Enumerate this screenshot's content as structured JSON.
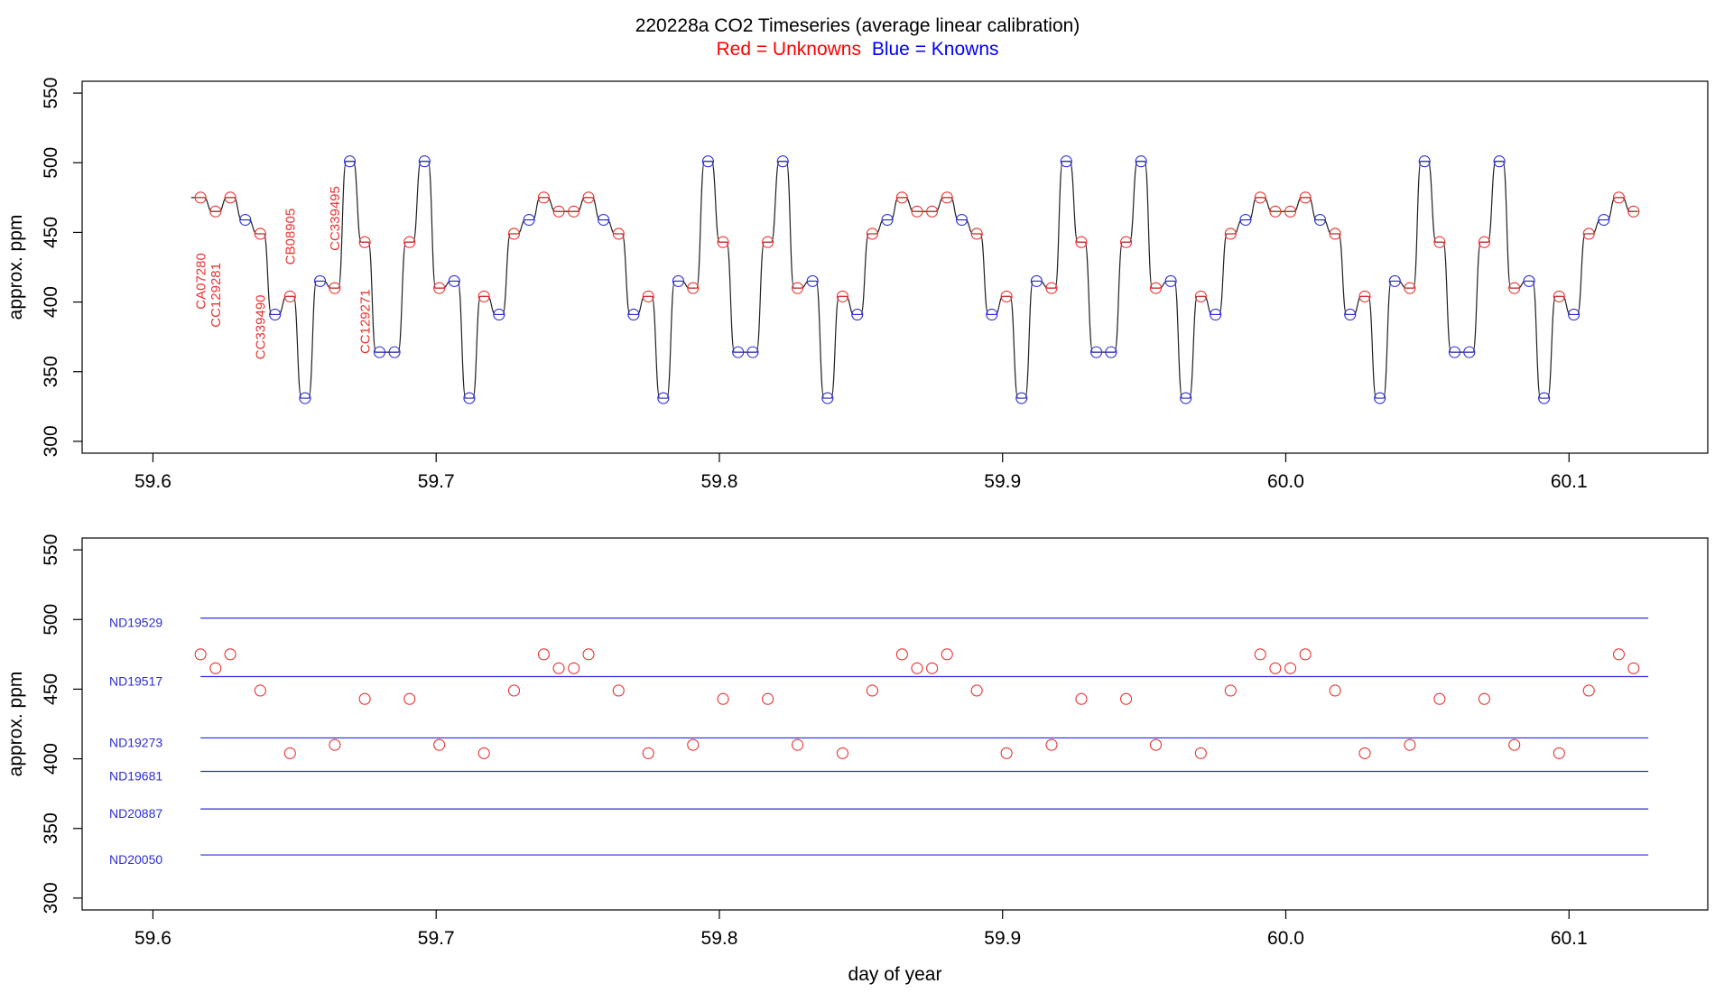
{
  "title": "220228a   CO2 Timeseries (average linear calibration)",
  "legend": {
    "red_label": "Red = Unknowns",
    "blue_label": "Blue = Knowns",
    "red_color": "#ff0000",
    "blue_color": "#0000ff"
  },
  "colors": {
    "unknown": "#e8322f",
    "known": "#2d2dd8",
    "trace": "#222222",
    "frame": "#000000"
  },
  "chart_data": [
    {
      "type": "line",
      "panel": "top",
      "xlabel": "",
      "ylabel": "approx. ppm",
      "xlim": [
        59.575,
        60.149
      ],
      "ylim": [
        291.5,
        558.5
      ],
      "xticks": [
        59.6,
        59.7,
        59.8,
        59.9,
        60.0,
        60.1
      ],
      "xtick_labels": [
        "59.6",
        "59.7",
        "59.8",
        "59.9",
        "60.0",
        "60.1"
      ],
      "yticks": [
        300,
        350,
        400,
        450,
        500,
        550
      ],
      "ytick_labels": [
        "300",
        "350",
        "400",
        "450",
        "500",
        "550"
      ],
      "trace_start": [
        59.6135,
        475
      ],
      "plateaus": [
        {
          "x": 59.6168,
          "y": 475,
          "kind": "unknown"
        },
        {
          "x": 59.6221,
          "y": 465,
          "kind": "unknown"
        },
        {
          "x": 59.6273,
          "y": 475,
          "kind": "unknown"
        },
        {
          "x": 59.6326,
          "y": 459,
          "kind": "known"
        },
        {
          "x": 59.6379,
          "y": 449,
          "kind": "unknown"
        },
        {
          "x": 59.6431,
          "y": 391,
          "kind": "known"
        },
        {
          "x": 59.6484,
          "y": 404,
          "kind": "unknown"
        },
        {
          "x": 59.6537,
          "y": 331,
          "kind": "known"
        },
        {
          "x": 59.659,
          "y": 415,
          "kind": "known"
        },
        {
          "x": 59.6642,
          "y": 410,
          "kind": "unknown"
        },
        {
          "x": 59.6695,
          "y": 501,
          "kind": "known"
        },
        {
          "x": 59.6748,
          "y": 443,
          "kind": "unknown"
        },
        {
          "x": 59.68,
          "y": 364,
          "kind": "known"
        },
        {
          "x": 59.6853,
          "y": 364,
          "kind": "known"
        },
        {
          "x": 59.6906,
          "y": 443,
          "kind": "unknown"
        },
        {
          "x": 59.6959,
          "y": 501,
          "kind": "known"
        },
        {
          "x": 59.7011,
          "y": 410,
          "kind": "unknown"
        },
        {
          "x": 59.7064,
          "y": 415,
          "kind": "known"
        },
        {
          "x": 59.7117,
          "y": 331,
          "kind": "known"
        },
        {
          "x": 59.7169,
          "y": 404,
          "kind": "unknown"
        },
        {
          "x": 59.7222,
          "y": 391,
          "kind": "known"
        },
        {
          "x": 59.7275,
          "y": 449,
          "kind": "unknown"
        },
        {
          "x": 59.7328,
          "y": 459,
          "kind": "known"
        },
        {
          "x": 59.738,
          "y": 475,
          "kind": "unknown"
        },
        {
          "x": 59.7433,
          "y": 465,
          "kind": "unknown"
        },
        {
          "x": 59.7486,
          "y": 465,
          "kind": "unknown"
        },
        {
          "x": 59.7538,
          "y": 475,
          "kind": "unknown"
        },
        {
          "x": 59.7591,
          "y": 459,
          "kind": "known"
        },
        {
          "x": 59.7644,
          "y": 449,
          "kind": "unknown"
        },
        {
          "x": 59.7697,
          "y": 391,
          "kind": "known"
        },
        {
          "x": 59.7749,
          "y": 404,
          "kind": "unknown"
        },
        {
          "x": 59.7802,
          "y": 331,
          "kind": "known"
        },
        {
          "x": 59.7855,
          "y": 415,
          "kind": "known"
        },
        {
          "x": 59.7907,
          "y": 410,
          "kind": "unknown"
        },
        {
          "x": 59.796,
          "y": 501,
          "kind": "known"
        },
        {
          "x": 59.8013,
          "y": 443,
          "kind": "unknown"
        },
        {
          "x": 59.8066,
          "y": 364,
          "kind": "known"
        },
        {
          "x": 59.8118,
          "y": 364,
          "kind": "known"
        },
        {
          "x": 59.8171,
          "y": 443,
          "kind": "unknown"
        },
        {
          "x": 59.8224,
          "y": 501,
          "kind": "known"
        },
        {
          "x": 59.8276,
          "y": 410,
          "kind": "unknown"
        },
        {
          "x": 59.8329,
          "y": 415,
          "kind": "known"
        },
        {
          "x": 59.8382,
          "y": 331,
          "kind": "known"
        },
        {
          "x": 59.8435,
          "y": 404,
          "kind": "unknown"
        },
        {
          "x": 59.8487,
          "y": 391,
          "kind": "known"
        },
        {
          "x": 59.854,
          "y": 449,
          "kind": "unknown"
        },
        {
          "x": 59.8593,
          "y": 459,
          "kind": "known"
        },
        {
          "x": 59.8645,
          "y": 475,
          "kind": "unknown"
        },
        {
          "x": 59.8698,
          "y": 465,
          "kind": "unknown"
        },
        {
          "x": 59.8751,
          "y": 465,
          "kind": "unknown"
        },
        {
          "x": 59.8804,
          "y": 475,
          "kind": "unknown"
        },
        {
          "x": 59.8856,
          "y": 459,
          "kind": "known"
        },
        {
          "x": 59.8909,
          "y": 449,
          "kind": "unknown"
        },
        {
          "x": 59.8962,
          "y": 391,
          "kind": "known"
        },
        {
          "x": 59.9014,
          "y": 404,
          "kind": "unknown"
        },
        {
          "x": 59.9067,
          "y": 331,
          "kind": "known"
        },
        {
          "x": 59.912,
          "y": 415,
          "kind": "known"
        },
        {
          "x": 59.9173,
          "y": 410,
          "kind": "unknown"
        },
        {
          "x": 59.9225,
          "y": 501,
          "kind": "known"
        },
        {
          "x": 59.9278,
          "y": 443,
          "kind": "unknown"
        },
        {
          "x": 59.9331,
          "y": 364,
          "kind": "known"
        },
        {
          "x": 59.9383,
          "y": 364,
          "kind": "known"
        },
        {
          "x": 59.9436,
          "y": 443,
          "kind": "unknown"
        },
        {
          "x": 59.9489,
          "y": 501,
          "kind": "known"
        },
        {
          "x": 59.9541,
          "y": 410,
          "kind": "unknown"
        },
        {
          "x": 59.9594,
          "y": 415,
          "kind": "known"
        },
        {
          "x": 59.9647,
          "y": 331,
          "kind": "known"
        },
        {
          "x": 59.97,
          "y": 404,
          "kind": "unknown"
        },
        {
          "x": 59.9752,
          "y": 391,
          "kind": "known"
        },
        {
          "x": 59.9805,
          "y": 449,
          "kind": "unknown"
        },
        {
          "x": 59.9858,
          "y": 459,
          "kind": "known"
        },
        {
          "x": 59.991,
          "y": 475,
          "kind": "unknown"
        },
        {
          "x": 59.9963,
          "y": 465,
          "kind": "unknown"
        },
        {
          "x": 60.0016,
          "y": 465,
          "kind": "unknown"
        },
        {
          "x": 60.0069,
          "y": 475,
          "kind": "unknown"
        },
        {
          "x": 60.0121,
          "y": 459,
          "kind": "known"
        },
        {
          "x": 60.0174,
          "y": 449,
          "kind": "unknown"
        },
        {
          "x": 60.0227,
          "y": 391,
          "kind": "known"
        },
        {
          "x": 60.0279,
          "y": 404,
          "kind": "unknown"
        },
        {
          "x": 60.0332,
          "y": 331,
          "kind": "known"
        },
        {
          "x": 60.0385,
          "y": 415,
          "kind": "known"
        },
        {
          "x": 60.0438,
          "y": 410,
          "kind": "unknown"
        },
        {
          "x": 60.049,
          "y": 501,
          "kind": "known"
        },
        {
          "x": 60.0543,
          "y": 443,
          "kind": "unknown"
        },
        {
          "x": 60.0596,
          "y": 364,
          "kind": "known"
        },
        {
          "x": 60.0648,
          "y": 364,
          "kind": "known"
        },
        {
          "x": 60.0701,
          "y": 443,
          "kind": "unknown"
        },
        {
          "x": 60.0754,
          "y": 501,
          "kind": "known"
        },
        {
          "x": 60.0807,
          "y": 410,
          "kind": "unknown"
        },
        {
          "x": 60.0859,
          "y": 415,
          "kind": "known"
        },
        {
          "x": 60.0912,
          "y": 331,
          "kind": "known"
        },
        {
          "x": 60.0965,
          "y": 404,
          "kind": "unknown"
        },
        {
          "x": 60.1017,
          "y": 391,
          "kind": "known"
        },
        {
          "x": 60.107,
          "y": 449,
          "kind": "unknown"
        },
        {
          "x": 60.1123,
          "y": 459,
          "kind": "known"
        },
        {
          "x": 60.1176,
          "y": 475,
          "kind": "unknown"
        },
        {
          "x": 60.1228,
          "y": 465,
          "kind": "unknown"
        }
      ],
      "annotations": [
        {
          "text": "CA07280",
          "x": 59.6185,
          "y": 415
        },
        {
          "text": "CC129281",
          "x": 59.6238,
          "y": 405
        },
        {
          "text": "CC339490",
          "x": 59.6395,
          "y": 382
        },
        {
          "text": "CB08905",
          "x": 59.65,
          "y": 447
        },
        {
          "text": "CC339495",
          "x": 59.6658,
          "y": 460
        },
        {
          "text": "CC129271",
          "x": 59.6765,
          "y": 386
        }
      ]
    },
    {
      "type": "scatter",
      "panel": "bottom",
      "xlabel": "day of year",
      "ylabel": "approx. ppm",
      "xlim": [
        59.575,
        60.149
      ],
      "ylim": [
        291.5,
        558.5
      ],
      "xticks": [
        59.6,
        59.7,
        59.8,
        59.9,
        60.0,
        60.1
      ],
      "xtick_labels": [
        "59.6",
        "59.7",
        "59.8",
        "59.9",
        "60.0",
        "60.1"
      ],
      "yticks": [
        300,
        350,
        400,
        450,
        500,
        550
      ],
      "ytick_labels": [
        "300",
        "350",
        "400",
        "450",
        "500",
        "550"
      ],
      "reference_lines": [
        {
          "name": "ND19529",
          "y": 501,
          "x": [
            59.6168,
            60.128
          ]
        },
        {
          "name": "ND19517",
          "y": 459,
          "x": [
            59.6168,
            60.128
          ]
        },
        {
          "name": "ND19273",
          "y": 415,
          "x": [
            59.6168,
            60.128
          ]
        },
        {
          "name": "ND19681",
          "y": 391,
          "x": [
            59.6168,
            60.128
          ]
        },
        {
          "name": "ND20887",
          "y": 364,
          "x": [
            59.6168,
            60.128
          ]
        },
        {
          "name": "ND20050",
          "y": 331,
          "x": [
            59.6168,
            60.128
          ]
        }
      ],
      "points": [
        [
          59.6168,
          475
        ],
        [
          59.6221,
          465
        ],
        [
          59.6273,
          475
        ],
        [
          59.6379,
          449
        ],
        [
          59.6484,
          404
        ],
        [
          59.6642,
          410
        ],
        [
          59.6748,
          443
        ],
        [
          59.6906,
          443
        ],
        [
          59.7011,
          410
        ],
        [
          59.7169,
          404
        ],
        [
          59.7275,
          449
        ],
        [
          59.738,
          475
        ],
        [
          59.7433,
          465
        ],
        [
          59.7486,
          465
        ],
        [
          59.7538,
          475
        ],
        [
          59.7644,
          449
        ],
        [
          59.7749,
          404
        ],
        [
          59.7907,
          410
        ],
        [
          59.8013,
          443
        ],
        [
          59.8171,
          443
        ],
        [
          59.8276,
          410
        ],
        [
          59.8435,
          404
        ],
        [
          59.854,
          449
        ],
        [
          59.8645,
          475
        ],
        [
          59.8698,
          465
        ],
        [
          59.8751,
          465
        ],
        [
          59.8804,
          475
        ],
        [
          59.8909,
          449
        ],
        [
          59.9014,
          404
        ],
        [
          59.9173,
          410
        ],
        [
          59.9278,
          443
        ],
        [
          59.9436,
          443
        ],
        [
          59.9541,
          410
        ],
        [
          59.97,
          404
        ],
        [
          59.9805,
          449
        ],
        [
          59.991,
          475
        ],
        [
          59.9963,
          465
        ],
        [
          60.0016,
          465
        ],
        [
          60.0069,
          475
        ],
        [
          60.0174,
          449
        ],
        [
          60.0279,
          404
        ],
        [
          60.0438,
          410
        ],
        [
          60.0543,
          443
        ],
        [
          60.0701,
          443
        ],
        [
          60.0807,
          410
        ],
        [
          60.0965,
          404
        ],
        [
          60.107,
          449
        ],
        [
          60.1176,
          475
        ],
        [
          60.1228,
          465
        ]
      ]
    }
  ]
}
